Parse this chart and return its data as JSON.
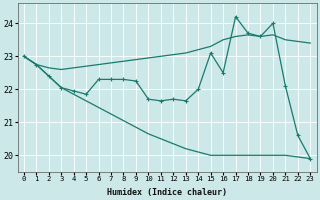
{
  "xlabel": "Humidex (Indice chaleur)",
  "background_color": "#cce8e8",
  "grid_color": "#ffffff",
  "line_color": "#1a7a6e",
  "x_values": [
    0,
    1,
    2,
    3,
    4,
    5,
    6,
    7,
    8,
    9,
    10,
    11,
    12,
    13,
    14,
    15,
    16,
    17,
    18,
    19,
    20,
    21,
    22,
    23
  ],
  "y_main": [
    23.0,
    22.75,
    22.4,
    22.05,
    21.95,
    21.85,
    22.3,
    22.3,
    22.3,
    22.25,
    21.7,
    21.65,
    21.7,
    21.65,
    22.0,
    23.1,
    22.5,
    24.2,
    23.7,
    23.6,
    24.0,
    22.1,
    20.6,
    19.9
  ],
  "y_upper": [
    23.0,
    22.75,
    22.65,
    22.6,
    22.65,
    22.7,
    22.75,
    22.8,
    22.85,
    22.9,
    22.95,
    23.0,
    23.05,
    23.1,
    23.2,
    23.3,
    23.5,
    23.6,
    23.65,
    23.6,
    23.65,
    23.5,
    23.45,
    23.4
  ],
  "y_lower": [
    23.0,
    22.75,
    22.4,
    22.05,
    21.85,
    21.65,
    21.45,
    21.25,
    21.05,
    20.85,
    20.65,
    20.5,
    20.35,
    20.2,
    20.1,
    20.0,
    20.0,
    20.0,
    20.0,
    20.0,
    20.0,
    20.0,
    19.95,
    19.9
  ],
  "ylim": [
    19.5,
    24.6
  ],
  "yticks": [
    20,
    21,
    22,
    23,
    24
  ],
  "xlim": [
    -0.5,
    23.5
  ],
  "figsize": [
    3.2,
    2.0
  ],
  "dpi": 100
}
